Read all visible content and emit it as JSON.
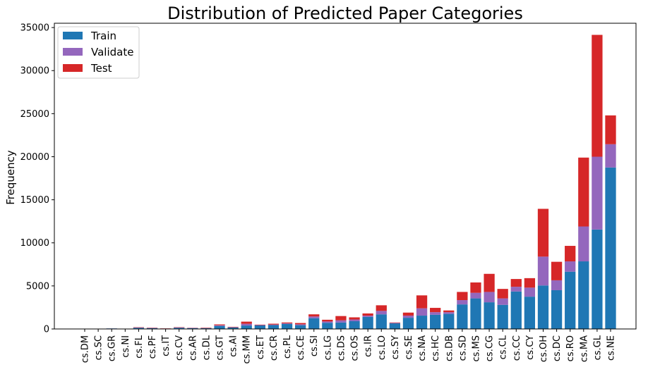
{
  "chart_data": {
    "type": "bar",
    "stacked": true,
    "title": "Distribution of Predicted Paper Categories",
    "xlabel": "",
    "ylabel": "Frequency",
    "ylim": [
      0,
      35500
    ],
    "yticks": [
      0,
      5000,
      10000,
      15000,
      20000,
      25000,
      30000,
      35000
    ],
    "legend_position": "top-left",
    "grid": false,
    "categories": [
      "cs.DM",
      "cs.SC",
      "cs.GR",
      "cs.NI",
      "cs.FL",
      "cs.PF",
      "cs.IT",
      "cs.CV",
      "cs.AR",
      "cs.DL",
      "cs.GT",
      "cs.AI",
      "cs.MM",
      "cs.ET",
      "cs.CR",
      "cs.PL",
      "cs.CE",
      "cs.SI",
      "cs.LG",
      "cs.DS",
      "cs.OS",
      "cs.IR",
      "cs.LO",
      "cs.SY",
      "cs.SE",
      "cs.NA",
      "cs.HC",
      "cs.DB",
      "cs.SD",
      "cs.MS",
      "cs.CG",
      "cs.CL",
      "cs.CC",
      "cs.CY",
      "cs.OH",
      "cs.DC",
      "cs.RO",
      "cs.MA",
      "cs.GL",
      "cs.NE"
    ],
    "series": [
      {
        "name": "Train",
        "color": "#1f77b4",
        "values": [
          10,
          15,
          60,
          20,
          120,
          90,
          40,
          130,
          90,
          80,
          350,
          170,
          400,
          410,
          450,
          590,
          440,
          1250,
          720,
          750,
          900,
          1400,
          1700,
          650,
          1300,
          1550,
          1650,
          1750,
          2850,
          3550,
          3100,
          2800,
          4350,
          3750,
          5050,
          4500,
          6650,
          7850,
          11550,
          18750
        ]
      },
      {
        "name": "Validate",
        "color": "#9467bd",
        "values": [
          0,
          0,
          10,
          0,
          40,
          30,
          10,
          40,
          30,
          30,
          80,
          30,
          200,
          40,
          60,
          60,
          100,
          200,
          150,
          250,
          200,
          150,
          400,
          50,
          250,
          850,
          300,
          200,
          500,
          650,
          1200,
          750,
          550,
          1050,
          3350,
          1150,
          1200,
          4050,
          8450,
          2700
        ]
      },
      {
        "name": "Test",
        "color": "#d62728",
        "values": [
          0,
          0,
          0,
          0,
          40,
          30,
          20,
          40,
          20,
          40,
          100,
          50,
          250,
          50,
          100,
          100,
          150,
          250,
          200,
          500,
          250,
          250,
          650,
          50,
          350,
          1500,
          500,
          200,
          950,
          1200,
          2100,
          1100,
          900,
          1100,
          5550,
          2150,
          1800,
          8000,
          14150,
          3350
        ]
      }
    ]
  }
}
